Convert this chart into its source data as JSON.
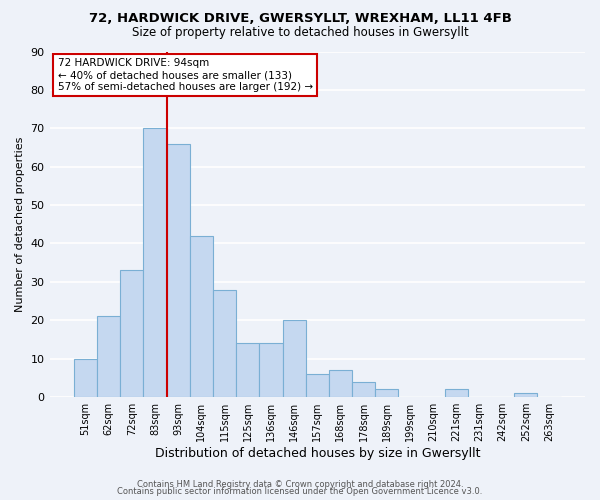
{
  "title": "72, HARDWICK DRIVE, GWERSYLLT, WREXHAM, LL11 4FB",
  "subtitle": "Size of property relative to detached houses in Gwersyllt",
  "xlabel": "Distribution of detached houses by size in Gwersyllt",
  "ylabel": "Number of detached properties",
  "bar_labels": [
    "51sqm",
    "62sqm",
    "72sqm",
    "83sqm",
    "93sqm",
    "104sqm",
    "115sqm",
    "125sqm",
    "136sqm",
    "146sqm",
    "157sqm",
    "168sqm",
    "178sqm",
    "189sqm",
    "199sqm",
    "210sqm",
    "221sqm",
    "231sqm",
    "242sqm",
    "252sqm",
    "263sqm"
  ],
  "bar_values": [
    10,
    21,
    33,
    70,
    66,
    42,
    28,
    14,
    14,
    20,
    6,
    7,
    4,
    2,
    0,
    0,
    2,
    0,
    0,
    1,
    0
  ],
  "bar_color": "#c5d8f0",
  "bar_edge_color": "#7aafd4",
  "highlight_line_bar_index": 4,
  "highlight_color": "#cc0000",
  "annotation_text": "72 HARDWICK DRIVE: 94sqm\n← 40% of detached houses are smaller (133)\n57% of semi-detached houses are larger (192) →",
  "annotation_box_color": "white",
  "annotation_box_edgecolor": "#cc0000",
  "ylim": [
    0,
    90
  ],
  "yticks": [
    0,
    10,
    20,
    30,
    40,
    50,
    60,
    70,
    80,
    90
  ],
  "background_color": "#eef2f9",
  "grid_color": "white",
  "footer1": "Contains HM Land Registry data © Crown copyright and database right 2024.",
  "footer2": "Contains public sector information licensed under the Open Government Licence v3.0."
}
